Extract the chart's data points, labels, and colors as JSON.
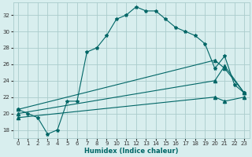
{
  "xlabel": "Humidex (Indice chaleur)",
  "bg_color": "#d8eeee",
  "grid_color": "#aacccc",
  "line_color": "#006666",
  "xlim": [
    -0.5,
    23.5
  ],
  "ylim": [
    17.0,
    33.5
  ],
  "yticks": [
    18,
    20,
    22,
    24,
    26,
    28,
    30,
    32
  ],
  "xticks": [
    0,
    1,
    2,
    3,
    4,
    5,
    6,
    7,
    8,
    9,
    10,
    11,
    12,
    13,
    14,
    15,
    16,
    17,
    18,
    19,
    20,
    21,
    22,
    23
  ],
  "series1_x": [
    0,
    1,
    2,
    3,
    4,
    5,
    6,
    7,
    8,
    9,
    10,
    11,
    12,
    13,
    14,
    15,
    16,
    17,
    18,
    19,
    20,
    21,
    22,
    23
  ],
  "series1_y": [
    20.5,
    20.0,
    19.5,
    17.5,
    18.0,
    21.5,
    21.5,
    27.5,
    28.0,
    29.5,
    31.5,
    32.0,
    33.0,
    32.5,
    32.5,
    31.5,
    30.5,
    30.0,
    29.5,
    28.5,
    25.5,
    27.0,
    23.5,
    22.5
  ],
  "series2_x": [
    0,
    20,
    21,
    23
  ],
  "series2_y": [
    20.5,
    26.5,
    25.5,
    22.5
  ],
  "series3_x": [
    0,
    20,
    21,
    23
  ],
  "series3_y": [
    20.0,
    24.0,
    25.8,
    22.5
  ],
  "series4_x": [
    0,
    20,
    21,
    23
  ],
  "series4_y": [
    19.5,
    22.0,
    21.5,
    22.0
  ]
}
